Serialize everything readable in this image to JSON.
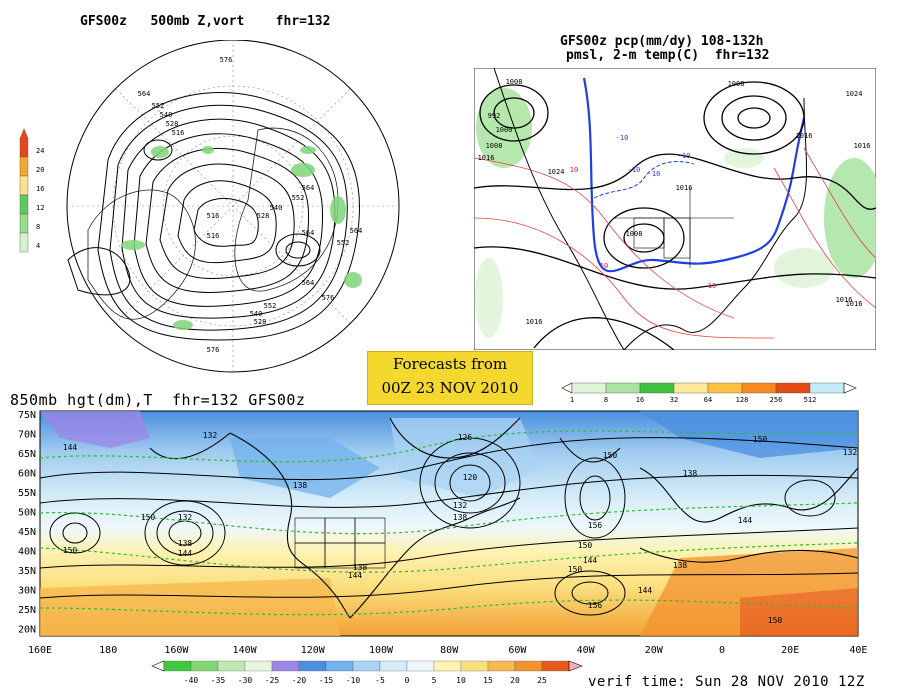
{
  "polar": {
    "title": "GFS00z   500mb Z,vort    fhr=132",
    "legend_ticks": [
      "24",
      "20",
      "16",
      "12",
      "8",
      "4"
    ],
    "legend_colors": [
      "#e8461e",
      "#f3a830",
      "#fbe28a",
      "#5ec95a",
      "#97dc8a",
      "#d6f0cf"
    ],
    "height_labels": [
      "576",
      "564",
      "552",
      "540",
      "528",
      "516",
      "564",
      "552",
      "540",
      "528",
      "516",
      "564",
      "576",
      "564",
      "552",
      "540",
      "528",
      "564",
      "552",
      "576",
      "516"
    ]
  },
  "conus": {
    "title_line1": "GFS00z pcp(mm/dy) 108-132h",
    "title_line2": "pmsl, 2-m temp(C)  fhr=132",
    "pressure_labels": [
      "1008",
      "992",
      "1000",
      "1008",
      "1016",
      "1024",
      "1016",
      "1008",
      "1024",
      "1016",
      "1016",
      "1008",
      "1016",
      "1016",
      "1016"
    ],
    "temp_labels": [
      "-10",
      "-10",
      "-10",
      "-10",
      "10",
      "10",
      "10"
    ],
    "precip_ticks": [
      "1",
      "8",
      "16",
      "32",
      "64",
      "128",
      "256",
      "512"
    ],
    "precip_colors": [
      "#dff3d8",
      "#a9e4a0",
      "#3dc23d",
      "#fce89a",
      "#fcc13e",
      "#f68a1c",
      "#e44a14",
      "#c4ecf7"
    ]
  },
  "forecast": {
    "line1": "Forecasts from",
    "line2": "00Z 23 NOV 2010"
  },
  "hemis850": {
    "title": "850mb hgt(dm),T  fhr=132 GFS00z",
    "lat_labels": [
      "75N",
      "70N",
      "65N",
      "60N",
      "55N",
      "50N",
      "45N",
      "40N",
      "35N",
      "30N",
      "25N",
      "20N"
    ],
    "lon_labels": [
      "160E",
      "180",
      "160W",
      "140W",
      "120W",
      "100W",
      "80W",
      "60W",
      "40W",
      "20W",
      "0",
      "20E",
      "40E"
    ],
    "contour_labels": [
      "132",
      "144",
      "150",
      "132",
      "138",
      "144",
      "150",
      "138",
      "126",
      "120",
      "132",
      "138",
      "150",
      "156",
      "150",
      "144",
      "138",
      "144",
      "150",
      "156",
      "138",
      "150",
      "144",
      "132",
      "150",
      "138",
      "144"
    ],
    "temp_ticks": [
      "-40",
      "-35",
      "-30",
      "-25",
      "-20",
      "-15",
      "-10",
      "-5",
      "0",
      "5",
      "10",
      "15",
      "20",
      "25"
    ],
    "temp_colors": [
      "#3ec93e",
      "#84d874",
      "#bde8b0",
      "#e6f5e0",
      "#9e86e8",
      "#4a8fe0",
      "#72b2ec",
      "#a9d3f4",
      "#d4ecf8",
      "#eef8fb",
      "#fdf3b4",
      "#fbdf7e",
      "#f7b84e",
      "#f39330",
      "#e85a1c"
    ],
    "verif_time": "verif time: Sun 28 NOV 2010 12Z"
  }
}
